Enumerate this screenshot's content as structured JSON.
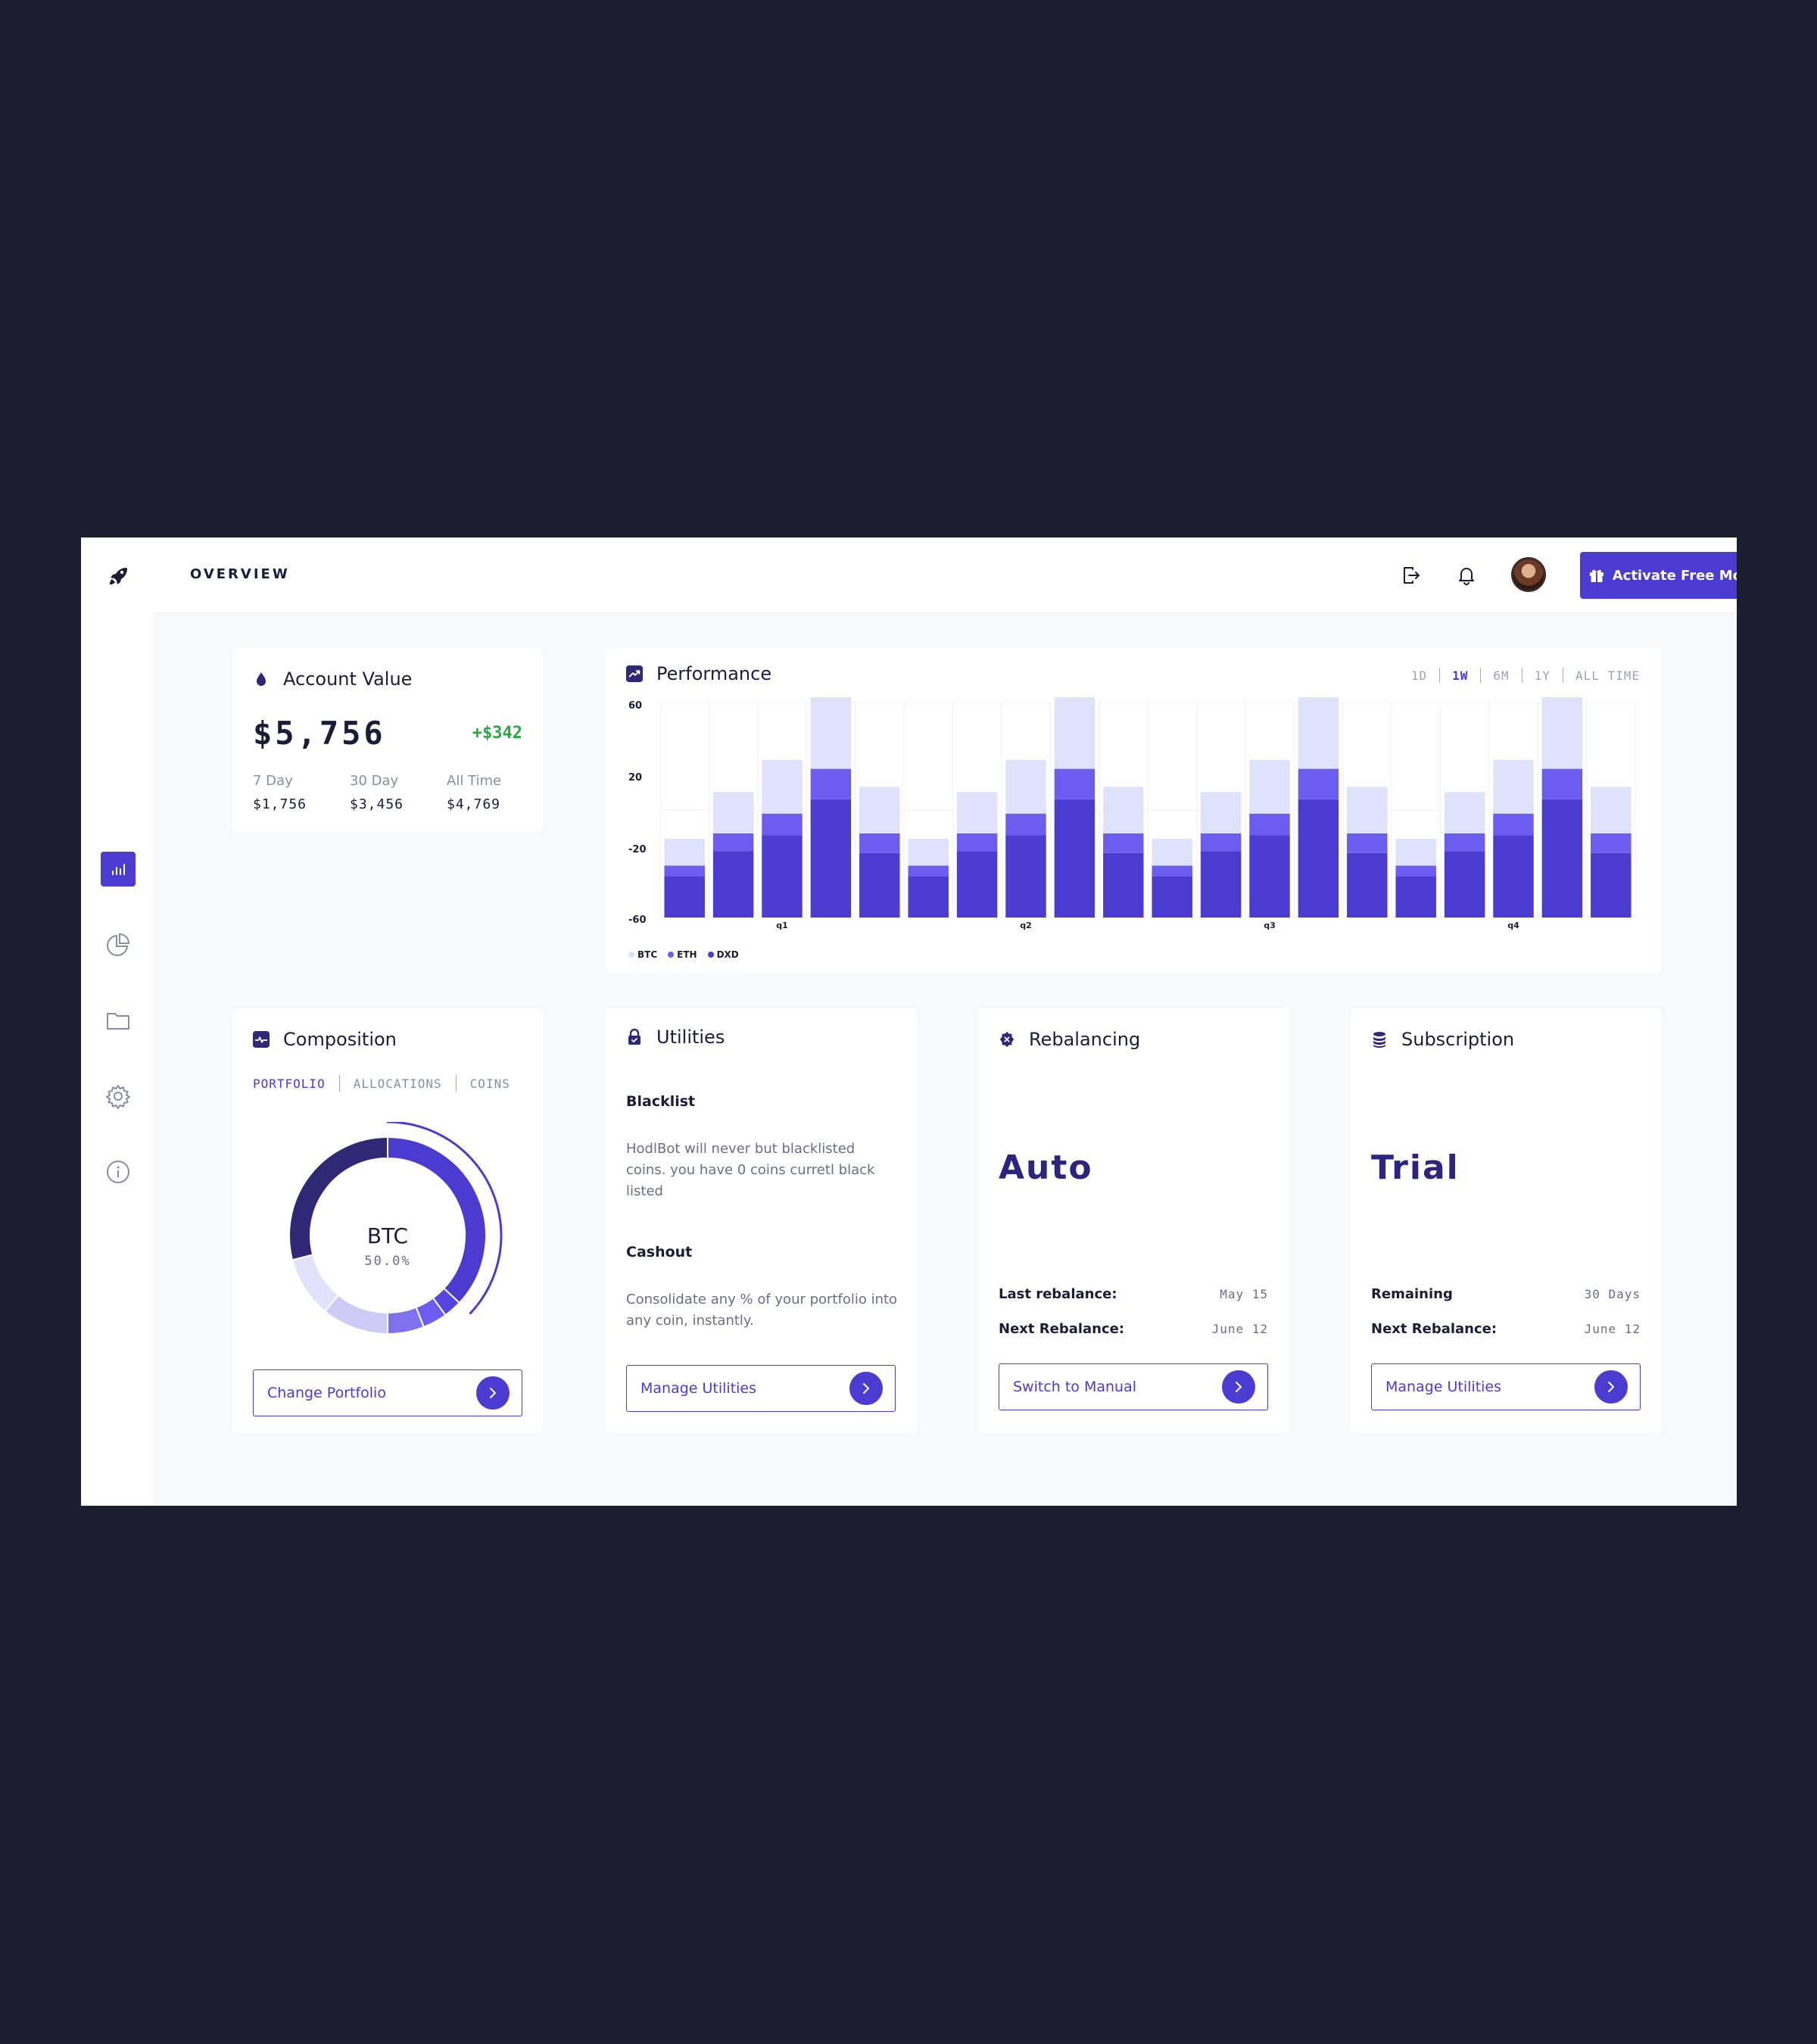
{
  "header": {
    "title": "OVERVIEW",
    "cta_label": "Activate Free Month"
  },
  "sidebar": {
    "items": [
      {
        "name": "analytics",
        "icon": "bar-chart-icon",
        "active": true
      },
      {
        "name": "portfolio",
        "icon": "pie-chart-icon",
        "active": false
      },
      {
        "name": "files",
        "icon": "folder-icon",
        "active": false
      },
      {
        "name": "settings",
        "icon": "gear-icon",
        "active": false
      },
      {
        "name": "info",
        "icon": "info-icon",
        "active": false
      }
    ]
  },
  "account_value": {
    "title": "Account Value",
    "value": "$5,756",
    "change": "+$342",
    "stats": [
      {
        "label": "7 Day",
        "value": "$1,756"
      },
      {
        "label": "30 Day",
        "value": "$3,456"
      },
      {
        "label": "All Time",
        "value": "$4,769"
      }
    ]
  },
  "performance": {
    "title": "Performance",
    "ranges": [
      "1D",
      "1W",
      "6M",
      "1Y",
      "ALL TIME"
    ],
    "active_range": "1W"
  },
  "chart_data": {
    "type": "bar",
    "stacked": true,
    "yticks": [
      "60",
      "20",
      "-20",
      "-60"
    ],
    "ylim": [
      -60,
      60
    ],
    "x_tick_labels": [
      {
        "index": 2,
        "label": "q1"
      },
      {
        "index": 7,
        "label": "q2"
      },
      {
        "index": 12,
        "label": "q3"
      },
      {
        "index": 17,
        "label": "q4"
      }
    ],
    "series": [
      {
        "name": "DXD",
        "color": "#4a3bd1",
        "values": [
          -37,
          -23,
          -14,
          6,
          -24,
          -37,
          -23,
          -14,
          6,
          -24,
          -37,
          -23,
          -14,
          6,
          -24,
          -37,
          -23,
          -14,
          6,
          -24
        ]
      },
      {
        "name": "ETH",
        "color": "#6b5df0",
        "values": [
          6,
          10,
          12,
          17,
          11,
          6,
          10,
          12,
          17,
          11,
          6,
          10,
          12,
          17,
          11,
          6,
          10,
          12,
          17,
          11
        ]
      },
      {
        "name": "BTC",
        "color": "#dfe2fb",
        "values": [
          15,
          23,
          30,
          40,
          26,
          15,
          23,
          30,
          40,
          26,
          15,
          23,
          30,
          40,
          26,
          15,
          23,
          30,
          40,
          26
        ]
      }
    ],
    "legend": [
      "BTC",
      "ETH",
      "DXD"
    ],
    "grid": true,
    "legend_position": "bottom-left"
  },
  "composition": {
    "title": "Composition",
    "tabs": [
      "PORTFOLIO",
      "ALLOCATIONS",
      "COINS"
    ],
    "active_tab": "PORTFOLIO",
    "center_label": "BTC",
    "center_value": "50.0%",
    "button_label": "Change Portfolio"
  },
  "donut_data": {
    "type": "pie",
    "slices": [
      {
        "value": 37,
        "color": "#4a3bd1"
      },
      {
        "value": 3,
        "color": "#5646df"
      },
      {
        "value": 4,
        "color": "#6b5df0"
      },
      {
        "value": 6,
        "color": "#7f72ef"
      },
      {
        "value": 11,
        "color": "#cfcbf7"
      },
      {
        "value": 10,
        "color": "#e3e1fb"
      },
      {
        "value": 29,
        "color": "#2e2876"
      }
    ],
    "highlight": 0.37
  },
  "utilities": {
    "title": "Utilities",
    "blacklist_heading": "Blacklist",
    "blacklist_text": "HodlBot will never but blacklisted coins. you have 0 coins curretl black listed",
    "cashout_heading": "Cashout",
    "cashout_text": "Consolidate any % of your portfolio into any coin, instantly.",
    "button_label": "Manage Utilities"
  },
  "rebalancing": {
    "title": "Rebalancing",
    "mode": "Auto",
    "last_label": "Last rebalance:",
    "last_value": "May 15",
    "next_label": "Next Rebalance:",
    "next_value": "June 12",
    "button_label": "Switch to Manual"
  },
  "subscription": {
    "title": "Subscription",
    "plan": "Trial",
    "remaining_label": "Remaining",
    "remaining_value": "30 Days",
    "next_label": "Next Rebalance:",
    "next_value": "June 12",
    "button_label": "Manage Utilities"
  },
  "colors": {
    "accent": "#4a3bd1",
    "positive": "#28a745",
    "background": "#1b1c2e"
  }
}
